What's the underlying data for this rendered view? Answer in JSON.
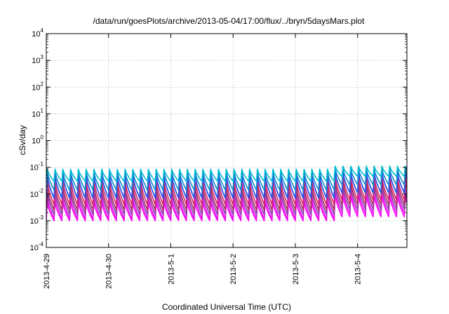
{
  "chart_data": {
    "type": "line",
    "title": "/data/run/goesPlots/archive/2013-05-04/17:00/flux/../bryn/5daysMars.plot",
    "xlabel": "Coordinated Universal Time (UTC)",
    "ylabel": "cSv/day",
    "yscale": "log",
    "ylim": [
      0.0001,
      10000
    ],
    "y_ticks": [
      {
        "base": "10",
        "exp": "-4"
      },
      {
        "base": "10",
        "exp": "-3"
      },
      {
        "base": "10",
        "exp": "-2"
      },
      {
        "base": "10",
        "exp": "-1"
      },
      {
        "base": "10",
        "exp": "0"
      },
      {
        "base": "10",
        "exp": "1"
      },
      {
        "base": "10",
        "exp": "2"
      },
      {
        "base": "10",
        "exp": "3"
      },
      {
        "base": "10",
        "exp": "4"
      }
    ],
    "xlim": [
      "2013-04-29",
      "2013-05-04T19:00"
    ],
    "x_ticks": [
      "2013-4-29",
      "2013-4-30",
      "2013-5-1",
      "2013-5-2",
      "2013-5-3",
      "2013-5-4"
    ],
    "grid": true,
    "pattern": {
      "description_free": true,
      "cycles_per_day": 8,
      "jump_date": "2013-05-03T14:00",
      "peaks_before": [
        0.085,
        0.07,
        0.05,
        0.032,
        0.02,
        0.013,
        0.008,
        0.005
      ],
      "troughs_before": [
        0.03,
        0.014,
        0.007,
        0.004,
        0.0025,
        0.0017,
        0.0012,
        0.001
      ],
      "peaks_after": [
        0.11,
        0.09,
        0.065,
        0.045,
        0.03,
        0.02,
        0.013,
        0.009
      ],
      "troughs_after": [
        0.045,
        0.022,
        0.011,
        0.006,
        0.004,
        0.0027,
        0.0019,
        0.0014
      ]
    },
    "series_colors": [
      "#ff00ff",
      "#e21fe8",
      "#c23bd0",
      "#8e44ad",
      "#b03060",
      "#d62470",
      "#3b3bd6",
      "#2255ee",
      "#1188cc",
      "#00bcd4"
    ]
  }
}
